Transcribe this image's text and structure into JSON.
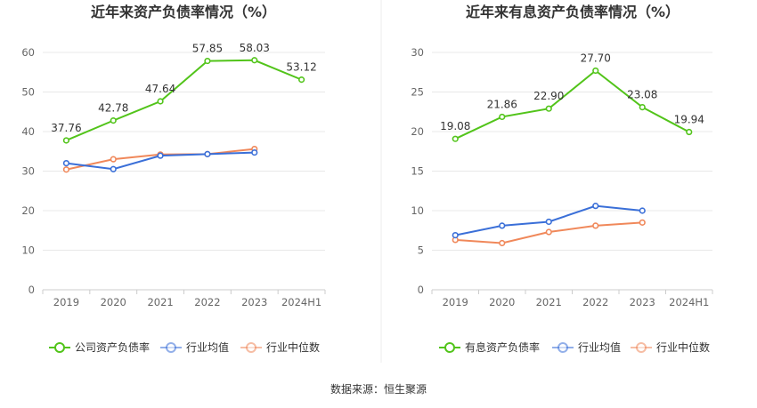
{
  "colors": {
    "company": "#52c41a",
    "industry_avg": "#3a6fd8",
    "industry_median": "#f0885a"
  },
  "source_text": "数据来源：恒生聚源",
  "chart_data": [
    {
      "type": "line",
      "title": "近年来资产负债率情况（%）",
      "categories": [
        "2019",
        "2020",
        "2021",
        "2022",
        "2023",
        "2024H1"
      ],
      "ylim": [
        0,
        60
      ],
      "yticks": [
        0,
        10,
        20,
        30,
        40,
        50,
        60
      ],
      "grid": true,
      "legend_position": "bottom",
      "series": [
        {
          "name": "公司资产负债率",
          "color": "#52c41a",
          "labels": true,
          "values": [
            37.76,
            42.78,
            47.64,
            57.85,
            58.03,
            53.12
          ]
        },
        {
          "name": "行业均值",
          "color": "#3a6fd8",
          "labels": false,
          "values": [
            32.0,
            30.5,
            33.9,
            34.3,
            34.7,
            null
          ]
        },
        {
          "name": "行业中位数",
          "color": "#f0885a",
          "labels": false,
          "values": [
            30.4,
            33.0,
            34.2,
            34.3,
            35.6,
            null
          ]
        }
      ]
    },
    {
      "type": "line",
      "title": "近年来有息资产负债率情况（%）",
      "categories": [
        "2019",
        "2020",
        "2021",
        "2022",
        "2023",
        "2024H1"
      ],
      "ylim": [
        0,
        30
      ],
      "yticks": [
        0,
        5,
        10,
        15,
        20,
        25,
        30
      ],
      "grid": true,
      "legend_position": "bottom",
      "series": [
        {
          "name": "有息资产负债率",
          "color": "#52c41a",
          "labels": true,
          "values": [
            19.08,
            21.86,
            22.9,
            27.7,
            23.08,
            19.94
          ]
        },
        {
          "name": "行业均值",
          "color": "#3a6fd8",
          "labels": false,
          "values": [
            6.9,
            8.1,
            8.6,
            10.6,
            10.0,
            null
          ]
        },
        {
          "name": "行业中位数",
          "color": "#f0885a",
          "labels": false,
          "values": [
            6.3,
            5.9,
            7.3,
            8.1,
            8.5,
            null
          ]
        }
      ]
    }
  ]
}
